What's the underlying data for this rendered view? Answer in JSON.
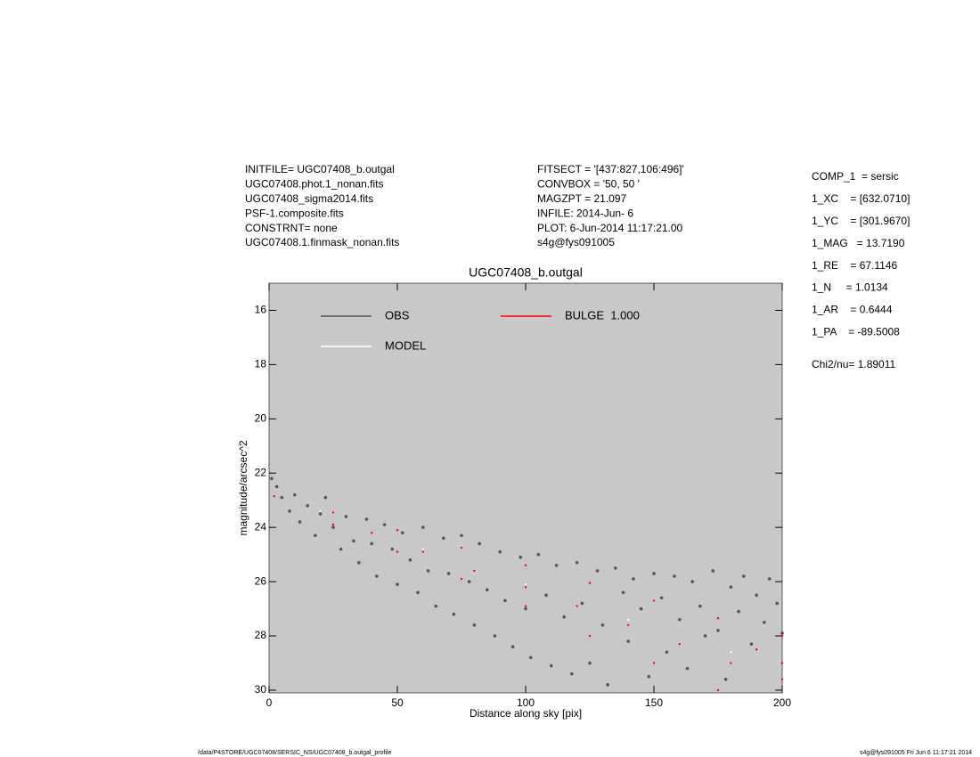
{
  "chart_data": {
    "type": "scatter",
    "title": "UGC07408_b.outgal",
    "x_label": "Distance along sky [pix]",
    "y_label": "magnitude/arcsec^2",
    "header_left": [
      "INITFILE= UGC07408_b.outgal",
      "UGC07408.phot.1_nonan.fits",
      "UGC07408_sigma2014.fits",
      "PSF-1.composite.fits",
      "CONSTRNT= none",
      "UGC07408.1.finmask_nonan.fits"
    ],
    "header_mid": [
      "FITSECT = '[437:827,106:496]'",
      "CONVBOX = '50, 50  '",
      "MAGZPT  =             21.097",
      "INFILE: 2014-Jun- 6",
      "PLOT:  6-Jun-2014 11:17:21.00",
      "s4g@fys091005"
    ],
    "params": [
      "COMP_1  = sersic",
      "1_XC    = [632.0710]",
      "1_YC    = [301.9670]",
      "1_MAG   = 13.7190",
      "1_RE    = 67.1146",
      "1_N     = 1.0134",
      "1_AR    = 0.6444",
      "1_PA    = -89.5008"
    ],
    "fit_stat": "Chi2/nu=      1.89011",
    "footer_left": "/data/P4STORE/UGC07408/SERSIC_NS/UGC07408_b.outgal_profile",
    "footer_right": "s4g@fys091005  Fri Jun  6 11:17:21 2014",
    "background": "#c8c8c8",
    "xlim": [
      0,
      200
    ],
    "xticks": [
      0,
      50,
      100,
      150,
      200
    ],
    "ylim": [
      30.1,
      15
    ],
    "yticks": [
      16,
      18,
      20,
      22,
      24,
      26,
      28,
      30
    ],
    "series": [
      {
        "name": "OBS",
        "color": "#555555",
        "x": [
          1,
          3,
          5,
          8,
          10,
          12,
          15,
          18,
          20,
          22,
          25,
          28,
          30,
          33,
          35,
          38,
          40,
          42,
          45,
          48,
          50,
          52,
          55,
          58,
          60,
          62,
          65,
          68,
          70,
          72,
          75,
          78,
          80,
          82,
          85,
          88,
          90,
          92,
          95,
          98,
          100,
          102,
          105,
          108,
          110,
          112,
          115,
          118,
          120,
          122,
          125,
          128,
          130,
          132,
          135,
          138,
          140,
          142,
          145,
          148,
          150,
          153,
          155,
          158,
          160,
          163,
          165,
          168,
          170,
          173,
          175,
          178,
          180,
          183,
          185,
          188,
          190,
          193,
          195,
          198,
          200
        ],
        "values": [
          22.2,
          22.5,
          22.9,
          23.4,
          22.8,
          23.8,
          23.2,
          24.3,
          23.5,
          22.9,
          24.0,
          24.8,
          23.6,
          24.5,
          25.3,
          23.7,
          24.6,
          25.8,
          23.9,
          24.8,
          26.1,
          24.2,
          25.2,
          26.4,
          24.0,
          25.6,
          26.9,
          24.4,
          25.7,
          27.2,
          24.3,
          26.0,
          27.6,
          24.6,
          26.3,
          28.0,
          24.9,
          26.7,
          28.4,
          25.1,
          27.0,
          28.8,
          25.0,
          26.5,
          29.1,
          25.4,
          27.3,
          29.4,
          25.3,
          26.8,
          29.0,
          25.6,
          27.6,
          29.8,
          25.5,
          26.4,
          28.2,
          25.9,
          27.0,
          29.5,
          25.7,
          26.6,
          28.6,
          25.8,
          27.4,
          29.2,
          26.0,
          26.9,
          28.0,
          25.6,
          27.8,
          29.6,
          26.2,
          27.1,
          25.8,
          28.3,
          26.5,
          27.5,
          25.9,
          26.8,
          27.9
        ]
      },
      {
        "name": "MODEL",
        "color": "#ffffff",
        "x": [
          20,
          60,
          100,
          140,
          180
        ],
        "values": [
          23.4,
          24.8,
          26.1,
          27.4,
          28.6
        ]
      },
      {
        "name": "BULGE  1.000",
        "color": "#ff0000",
        "x": [
          2,
          25,
          50,
          75,
          100,
          125,
          150,
          175,
          200,
          25,
          50,
          75,
          100,
          125,
          150,
          175,
          40,
          60,
          80,
          100,
          120,
          140,
          160,
          180,
          200,
          190,
          200
        ],
        "values": [
          22.85,
          23.45,
          24.1,
          24.75,
          25.4,
          26.05,
          26.7,
          27.35,
          28.0,
          23.9,
          24.9,
          25.9,
          26.9,
          28.0,
          29.0,
          30.0,
          24.2,
          24.9,
          25.6,
          26.2,
          26.9,
          27.6,
          28.3,
          29.0,
          29.6,
          28.5,
          29.0
        ]
      }
    ]
  }
}
